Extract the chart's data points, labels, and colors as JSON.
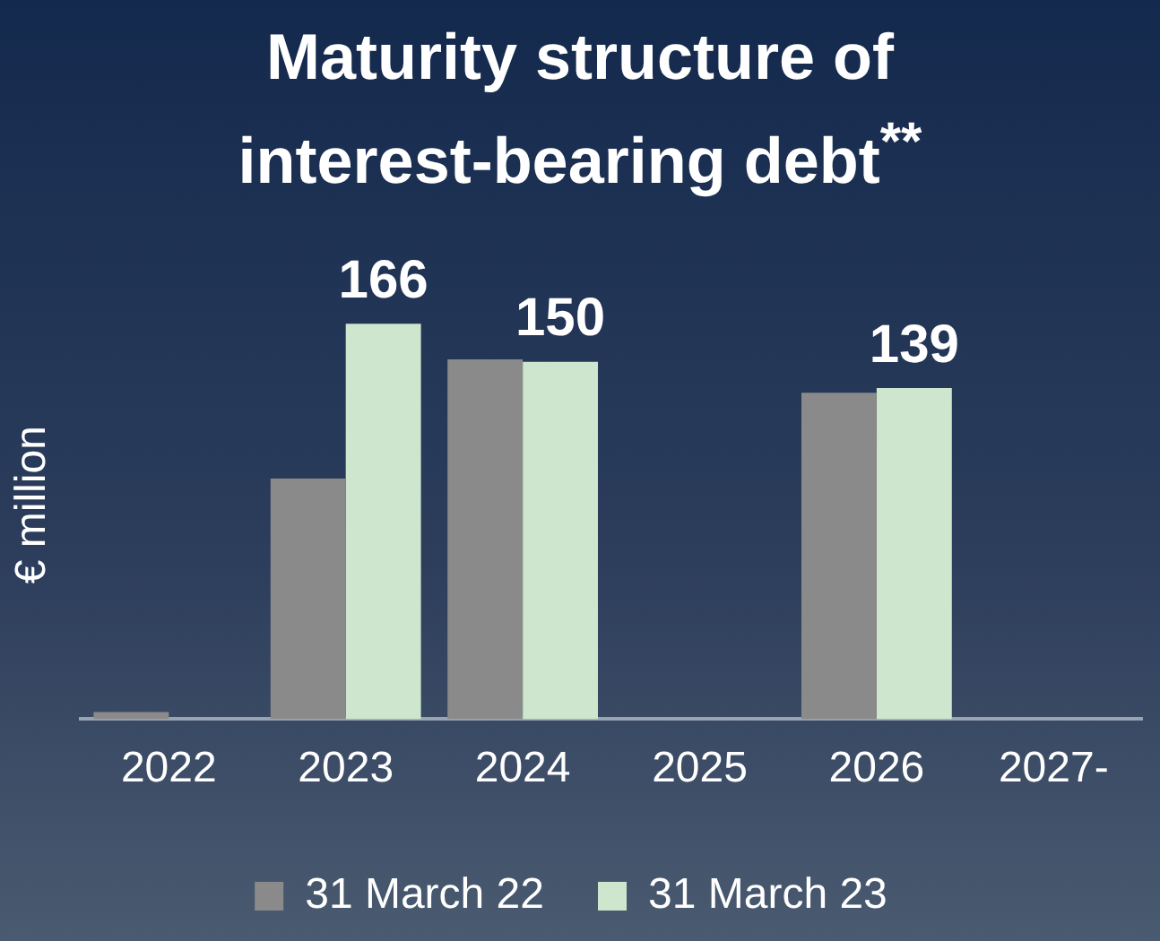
{
  "chart_data": {
    "type": "bar",
    "title": "Maturity structure of interest-bearing debt$^{**}$",
    "ylabel": "€ million",
    "categories": [
      "2022",
      "2023",
      "2024",
      "2025",
      "2026",
      "2027-"
    ],
    "series": [
      {
        "name": "31 March 22",
        "color": "#8a8a8a",
        "values": [
          3,
          101,
          151,
          0,
          137,
          0
        ]
      },
      {
        "name": "31 March 23",
        "color": "#cde6cd",
        "values": [
          0,
          166,
          150,
          0,
          139,
          0
        ],
        "value_labels": [
          null,
          "166",
          "150",
          null,
          "139",
          null
        ]
      }
    ],
    "tick_labels": "x",
    "legend": "bottom",
    "grid": false
  }
}
